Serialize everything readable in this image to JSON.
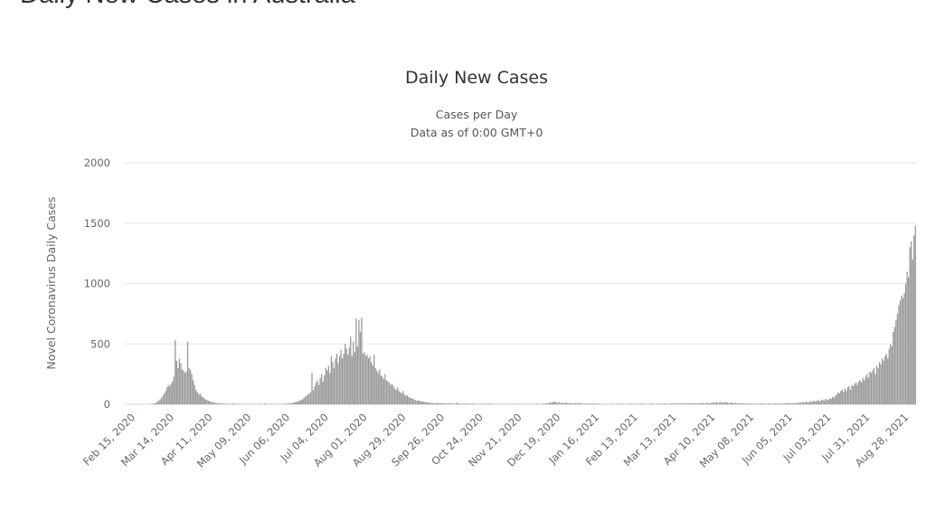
{
  "page": {
    "title": "Daily New Cases in Australia"
  },
  "chart_data": {
    "type": "bar",
    "title": "Daily New Cases",
    "subtitle_lines": [
      "Cases per Day",
      "Data as of 0:00 GMT+0"
    ],
    "xlabel": "",
    "ylabel": "Novel Coronavirus Daily Cases",
    "ylim": [
      0,
      2000
    ],
    "yticks": [
      0,
      500,
      1000,
      1500,
      2000
    ],
    "grid": true,
    "bar_color": "#999999",
    "x_start_date": "2020-02-15",
    "x_end_date": "2021-09-03",
    "xtick_labels": [
      "Feb 15, 2020",
      "Mar 14, 2020",
      "Apr 11, 2020",
      "May 09, 2020",
      "Jun 06, 2020",
      "Jul 04, 2020",
      "Aug 01, 2020",
      "Aug 29, 2020",
      "Sep 26, 2020",
      "Oct 24, 2020",
      "Nov 21, 2020",
      "Dec 19, 2020",
      "Jan 16, 2021",
      "Feb 13, 2021",
      "Mar 13, 2021",
      "Apr 10, 2021",
      "May 08, 2021",
      "Jun 05, 2021",
      "Jul 03, 2021",
      "Jul 31, 2021",
      "Aug 28, 2021"
    ],
    "values": [
      0,
      0,
      0,
      0,
      0,
      0,
      0,
      0,
      0,
      0,
      0,
      0,
      2,
      3,
      5,
      8,
      12,
      20,
      30,
      40,
      55,
      70,
      90,
      110,
      140,
      160,
      150,
      170,
      190,
      230,
      530,
      360,
      300,
      380,
      340,
      290,
      280,
      260,
      270,
      520,
      300,
      280,
      250,
      200,
      160,
      120,
      100,
      80,
      90,
      70,
      60,
      50,
      40,
      35,
      30,
      25,
      20,
      22,
      15,
      12,
      10,
      8,
      12,
      6,
      5,
      8,
      4,
      3,
      6,
      2,
      4,
      3,
      10,
      2,
      5,
      3,
      2,
      1,
      3,
      2,
      2,
      1,
      3,
      2,
      4,
      2,
      1,
      2,
      3,
      1,
      5,
      2,
      3,
      1,
      2,
      8,
      3,
      2,
      1,
      2,
      1,
      2,
      3,
      2,
      1,
      5,
      3,
      2,
      4,
      3,
      5,
      4,
      8,
      6,
      10,
      12,
      15,
      18,
      20,
      25,
      30,
      35,
      40,
      50,
      60,
      70,
      80,
      90,
      100,
      260,
      120,
      150,
      180,
      200,
      160,
      220,
      250,
      190,
      240,
      300,
      280,
      320,
      260,
      400,
      350,
      300,
      380,
      420,
      340,
      400,
      450,
      380,
      420,
      500,
      460,
      410,
      470,
      560,
      400,
      520,
      430,
      710,
      480,
      700,
      600,
      720,
      420,
      430,
      400,
      410,
      380,
      400,
      350,
      320,
      410,
      300,
      280,
      260,
      290,
      240,
      230,
      210,
      250,
      200,
      190,
      180,
      160,
      170,
      150,
      130,
      120,
      140,
      110,
      100,
      90,
      110,
      80,
      70,
      75,
      60,
      55,
      50,
      45,
      40,
      35,
      30,
      32,
      28,
      25,
      22,
      20,
      18,
      16,
      15,
      14,
      12,
      10,
      9,
      8,
      10,
      12,
      8,
      7,
      10,
      9,
      6,
      8,
      5,
      12,
      6,
      8,
      5,
      6,
      4,
      15,
      5,
      7,
      3,
      6,
      4,
      5,
      8,
      3,
      4,
      6,
      3,
      10,
      2,
      4,
      3,
      3,
      2,
      5,
      2,
      4,
      6,
      3,
      2,
      8,
      3,
      2,
      4,
      3,
      1,
      2,
      5,
      2,
      3,
      2,
      1,
      3,
      2,
      4,
      2,
      6,
      1,
      2,
      3,
      2,
      4,
      2,
      3,
      1,
      2,
      5,
      3,
      2,
      1,
      4,
      2,
      3,
      2,
      6,
      3,
      2,
      4,
      5,
      3,
      8,
      6,
      10,
      15,
      12,
      20,
      18,
      25,
      15,
      12,
      18,
      10,
      14,
      8,
      12,
      15,
      10,
      8,
      12,
      6,
      9,
      8,
      10,
      6,
      8,
      12,
      5,
      7,
      4,
      6,
      8,
      5,
      6,
      4,
      8,
      5,
      3,
      6,
      4,
      5,
      3,
      4,
      2,
      3,
      1,
      4,
      2,
      3,
      5,
      2,
      1,
      3,
      2,
      4,
      3,
      2,
      5,
      3,
      2,
      4,
      3,
      2,
      6,
      3,
      4,
      2,
      5,
      3,
      2,
      6,
      4,
      3,
      3,
      5,
      2,
      4,
      3,
      8,
      2,
      4,
      3,
      5,
      4,
      6,
      3,
      5,
      8,
      4,
      6,
      3,
      5,
      7,
      5,
      8,
      6,
      4,
      10,
      6,
      8,
      5,
      7,
      6,
      8,
      6,
      10,
      7,
      5,
      12,
      8,
      6,
      9,
      7,
      10,
      8,
      12,
      9,
      6,
      14,
      10,
      8,
      11,
      12,
      15,
      12,
      18,
      10,
      14,
      20,
      16,
      12,
      15,
      18,
      14,
      10,
      12,
      15,
      8,
      10,
      12,
      6,
      8,
      10,
      6,
      8,
      5,
      10,
      6,
      4,
      8,
      5,
      6,
      4,
      5,
      3,
      6,
      4,
      8,
      5,
      3,
      6,
      4,
      5,
      6,
      8,
      4,
      5,
      10,
      6,
      4,
      8,
      6,
      5,
      8,
      6,
      10,
      7,
      12,
      8,
      6,
      10,
      9,
      8,
      12,
      10,
      15,
      12,
      20,
      16,
      14,
      22,
      18,
      15,
      25,
      20,
      30,
      28,
      22,
      35,
      30,
      25,
      40,
      35,
      30,
      45,
      40,
      35,
      50,
      45,
      60,
      55,
      70,
      80,
      100,
      90,
      110,
      120,
      100,
      130,
      110,
      140,
      150,
      120,
      160,
      150,
      170,
      180,
      160,
      190,
      200,
      180,
      220,
      200,
      230,
      250,
      220,
      270,
      260,
      280,
      300,
      250,
      320,
      300,
      350,
      330,
      380,
      360,
      400,
      420,
      380,
      460,
      500,
      480,
      600,
      640,
      700,
      750,
      820,
      860,
      900,
      880,
      920,
      1000,
      1100,
      1050,
      1300,
      1350,
      1200,
      1400,
      1480
    ]
  }
}
